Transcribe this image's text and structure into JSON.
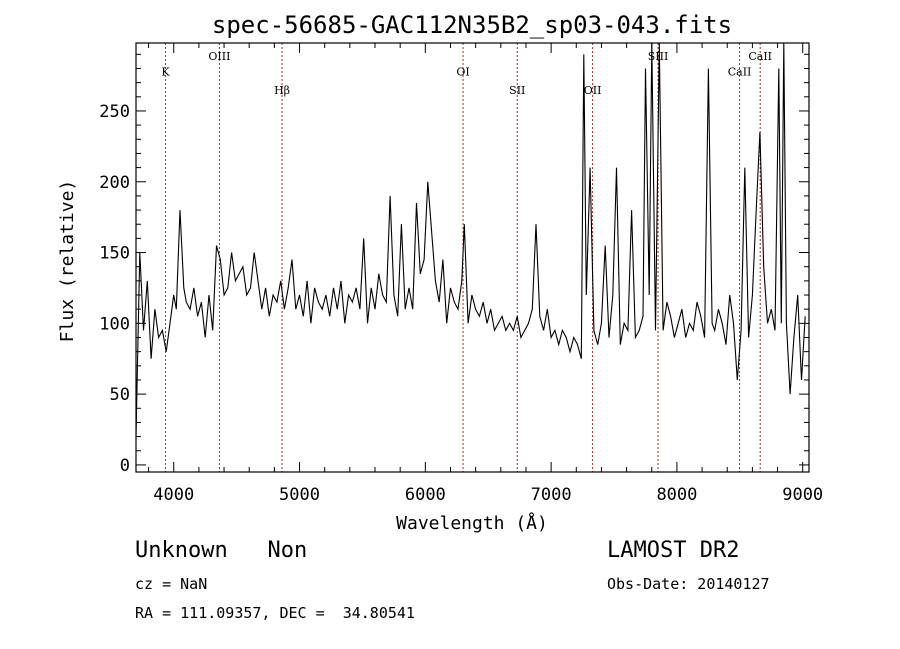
{
  "chart_data": {
    "type": "line",
    "title": "spec-56685-GAC112N35B2_sp03-043.fits",
    "xlabel": "Wavelength (Å)",
    "ylabel": "Flux (relative)",
    "xlim": [
      3700,
      9050
    ],
    "ylim": [
      -5,
      298
    ],
    "x_ticks": [
      4000,
      5000,
      6000,
      7000,
      8000,
      9000
    ],
    "y_ticks": [
      0,
      50,
      100,
      150,
      200,
      250
    ],
    "x_tick_labels": [
      "4000",
      "5000",
      "6000",
      "7000",
      "8000",
      "9000"
    ],
    "y_tick_labels": [
      "0",
      "50",
      "100",
      "150",
      "200",
      "250"
    ],
    "grid": false,
    "line_color": "#000000",
    "marker_color": "#b22222",
    "lines": [
      {
        "label": "K",
        "x": 3934,
        "label_y": 275
      },
      {
        "label": "OIII",
        "x": 4363,
        "label_y": 286
      },
      {
        "label": "Hβ",
        "x": 4861,
        "label_y": 262
      },
      {
        "label": "OI",
        "x": 6300,
        "label_y": 275
      },
      {
        "label": "SII",
        "x": 6731,
        "label_y": 262
      },
      {
        "label": "OII",
        "x": 7330,
        "label_y": 262
      },
      {
        "label": "SIII",
        "x": 7850,
        "label_y": 286
      },
      {
        "label": "CaII",
        "x": 8498,
        "label_y": 275
      },
      {
        "label": "CaII",
        "x": 8662,
        "label_y": 286
      }
    ],
    "series": [
      {
        "x": [
          3700,
          3730,
          3760,
          3790,
          3820,
          3850,
          3880,
          3910,
          3940,
          3970,
          4000,
          4020,
          4050,
          4080,
          4100,
          4130,
          4160,
          4190,
          4220,
          4250,
          4280,
          4310,
          4340,
          4370,
          4400,
          4430,
          4460,
          4490,
          4520,
          4550,
          4580,
          4610,
          4640,
          4670,
          4700,
          4730,
          4760,
          4790,
          4820,
          4850,
          4880,
          4910,
          4940,
          4970,
          5000,
          5030,
          5060,
          5090,
          5120,
          5150,
          5180,
          5210,
          5240,
          5270,
          5300,
          5330,
          5360,
          5390,
          5420,
          5450,
          5480,
          5510,
          5540,
          5570,
          5600,
          5630,
          5660,
          5690,
          5720,
          5750,
          5780,
          5810,
          5840,
          5870,
          5900,
          5930,
          5960,
          5990,
          6020,
          6050,
          6080,
          6110,
          6140,
          6170,
          6200,
          6230,
          6260,
          6290,
          6310,
          6340,
          6370,
          6400,
          6430,
          6460,
          6490,
          6520,
          6550,
          6580,
          6610,
          6640,
          6670,
          6700,
          6730,
          6760,
          6790,
          6820,
          6850,
          6880,
          6910,
          6940,
          6970,
          7000,
          7030,
          7060,
          7090,
          7120,
          7150,
          7180,
          7210,
          7240,
          7260,
          7280,
          7310,
          7340,
          7370,
          7400,
          7430,
          7460,
          7490,
          7520,
          7550,
          7580,
          7610,
          7640,
          7670,
          7700,
          7730,
          7750,
          7780,
          7800,
          7830,
          7860,
          7890,
          7920,
          7950,
          7980,
          8010,
          8040,
          8070,
          8100,
          8130,
          8160,
          8190,
          8220,
          8250,
          8280,
          8300,
          8330,
          8360,
          8390,
          8420,
          8450,
          8480,
          8510,
          8540,
          8570,
          8600,
          8630,
          8660,
          8690,
          8720,
          8750,
          8780,
          8810,
          8830,
          8850,
          8870,
          8900,
          8930,
          8960,
          8990,
          9020
        ],
        "y": [
          20,
          150,
          95,
          130,
          75,
          110,
          90,
          95,
          80,
          100,
          120,
          110,
          180,
          125,
          115,
          110,
          125,
          105,
          115,
          90,
          120,
          95,
          155,
          145,
          120,
          125,
          150,
          130,
          135,
          140,
          120,
          125,
          150,
          130,
          110,
          125,
          105,
          120,
          115,
          130,
          110,
          125,
          145,
          110,
          120,
          105,
          130,
          100,
          125,
          115,
          110,
          120,
          105,
          125,
          110,
          130,
          100,
          120,
          115,
          125,
          110,
          160,
          100,
          125,
          110,
          135,
          120,
          115,
          190,
          120,
          105,
          170,
          110,
          125,
          110,
          185,
          135,
          145,
          200,
          165,
          130,
          115,
          145,
          100,
          125,
          115,
          110,
          130,
          170,
          100,
          120,
          110,
          105,
          115,
          100,
          110,
          95,
          100,
          105,
          95,
          100,
          95,
          105,
          90,
          95,
          100,
          110,
          170,
          105,
          95,
          110,
          90,
          95,
          85,
          95,
          90,
          80,
          90,
          85,
          75,
          290,
          120,
          210,
          95,
          85,
          100,
          155,
          90,
          120,
          210,
          85,
          100,
          95,
          180,
          90,
          95,
          105,
          280,
          120,
          300,
          95,
          310,
          95,
          115,
          105,
          90,
          100,
          110,
          90,
          100,
          95,
          115,
          105,
          90,
          280,
          100,
          95,
          110,
          100,
          85,
          120,
          100,
          60,
          95,
          210,
          90,
          120,
          180,
          235,
          140,
          100,
          110,
          95,
          280,
          100,
          300,
          100,
          50,
          90,
          120,
          60,
          105
        ]
      }
    ]
  },
  "footer": {
    "object": "Unknown   Non",
    "survey": "LAMOST DR2",
    "cz": "cz = NaN",
    "obs_date": "Obs-Date: 20140127",
    "coords": "RA = 111.09357, DEC =  34.80541"
  }
}
